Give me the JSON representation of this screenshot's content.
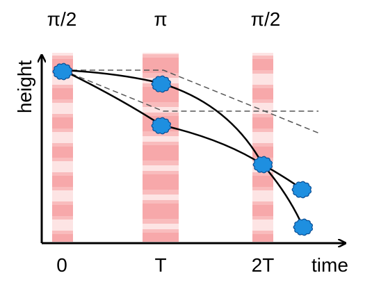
{
  "pulse_labels": [
    "π/2",
    "π",
    "π/2"
  ],
  "time_ticks": [
    "0",
    "T",
    "2T"
  ],
  "axis_x_label": "time",
  "axis_y_label": "height",
  "colors": {
    "pulse_band": "#f7a8aa",
    "atom_cloud_fill": "#1e8fe0",
    "atom_cloud_stroke": "#0b4f95",
    "trajectory": "#000000",
    "reference_path": "#555555"
  }
}
